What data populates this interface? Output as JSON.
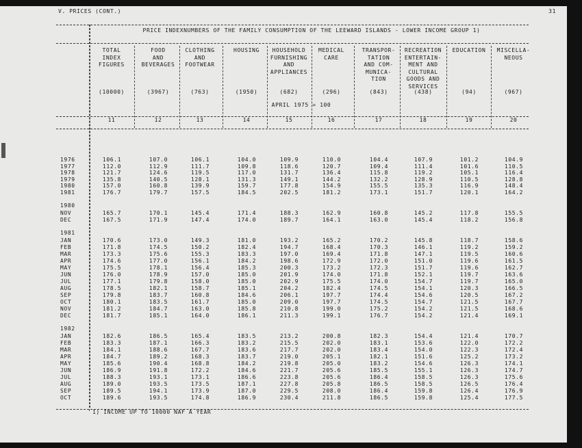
{
  "header": {
    "section": "V. PRICES (CONT.)",
    "page": "31"
  },
  "table": {
    "title": "PRICE INDEXNUMBERS OF THE FAMILY CONSUMPTION OF THE LEEWARD ISLANDS - LOWER INCOME GROUP 1)",
    "base": "APRIL 1975 = 100",
    "columns": [
      {
        "number": 11,
        "label": [
          "TOTAL",
          "INDEX",
          "FIGURES"
        ],
        "weight": "(10000)"
      },
      {
        "number": 12,
        "label": [
          "FOOD",
          "AND",
          "BEVERAGES"
        ],
        "weight": "(3967)"
      },
      {
        "number": 13,
        "label": [
          "CLOTHING",
          "AND",
          "FOOTWEAR"
        ],
        "weight": "(763)"
      },
      {
        "number": 14,
        "label": [
          "HOUSING"
        ],
        "weight": "(1950)"
      },
      {
        "number": 15,
        "label": [
          "HOUSEHOLD",
          "FURNISHING",
          "AND",
          "APPLIANCES"
        ],
        "weight": "(682)"
      },
      {
        "number": 16,
        "label": [
          "MEDICAL",
          "CARE"
        ],
        "weight": "(296)"
      },
      {
        "number": 17,
        "label": [
          "TRANSPOR-",
          "TATION",
          "AND COM-",
          "MUNICA-",
          "TION"
        ],
        "weight": "(843)"
      },
      {
        "number": 18,
        "label": [
          "RECREATION",
          "ENTERTAIN-",
          "MENT AND",
          "CULTURAL",
          "GOODS AND",
          "SERVICES"
        ],
        "weight": "(438)"
      },
      {
        "number": 19,
        "label": [
          "EDUCATION"
        ],
        "weight": "(94)"
      },
      {
        "number": 20,
        "label": [
          "MISCELLA-",
          "NEOUS"
        ],
        "weight": "(967)"
      }
    ],
    "groups": [
      {
        "rows": [
          {
            "label": "1976",
            "values": [
              "106.1",
              "107.0",
              "106.1",
              "104.0",
              "109.9",
              "110.0",
              "104.4",
              "107.9",
              "101.2",
              "104.9"
            ]
          },
          {
            "label": "1977",
            "values": [
              "112.0",
              "112.9",
              "111.7",
              "109.8",
              "118.6",
              "120.7",
              "109.4",
              "111.4",
              "101.6",
              "110.5"
            ]
          },
          {
            "label": "1978",
            "values": [
              "121.7",
              "124.6",
              "119.5",
              "117.0",
              "131.7",
              "136.4",
              "115.8",
              "119.2",
              "105.1",
              "116.4"
            ]
          },
          {
            "label": "1979",
            "values": [
              "135.8",
              "140.5",
              "128.1",
              "131.3",
              "149.1",
              "144.2",
              "132.2",
              "128.9",
              "110.5",
              "128.8"
            ]
          },
          {
            "label": "1980",
            "values": [
              "157.0",
              "160.8",
              "139.9",
              "159.7",
              "177.8",
              "154.9",
              "155.5",
              "135.3",
              "116.9",
              "148.4"
            ]
          },
          {
            "label": "1981",
            "values": [
              "176.7",
              "179.7",
              "157.5",
              "184.5",
              "202.5",
              "181.2",
              "173.1",
              "151.7",
              "120.1",
              "164.2"
            ]
          }
        ]
      },
      {
        "label": "1980",
        "rows": [
          {
            "label": "NOV",
            "values": [
              "165.7",
              "170.1",
              "145.4",
              "171.4",
              "188.3",
              "162.9",
              "160.8",
              "145.2",
              "117.8",
              "155.5"
            ]
          },
          {
            "label": "DEC",
            "values": [
              "167.5",
              "171.9",
              "147.4",
              "174.0",
              "189.7",
              "164.1",
              "163.0",
              "145.4",
              "118.2",
              "156.8"
            ]
          }
        ]
      },
      {
        "label": "1981",
        "rows": [
          {
            "label": "JAN",
            "values": [
              "170.6",
              "173.0",
              "149.3",
              "181.0",
              "193.2",
              "165.2",
              "170.2",
              "145.8",
              "118.7",
              "158.6"
            ]
          },
          {
            "label": "FEB",
            "values": [
              "171.8",
              "174.5",
              "150.2",
              "182.4",
              "194.7",
              "168.4",
              "170.3",
              "146.1",
              "119.2",
              "159.2"
            ]
          },
          {
            "label": "MAR",
            "values": [
              "173.3",
              "175.6",
              "155.3",
              "183.3",
              "197.0",
              "169.4",
              "171.8",
              "147.1",
              "119.5",
              "160.6"
            ]
          },
          {
            "label": "APR",
            "values": [
              "174.6",
              "177.0",
              "156.1",
              "184.2",
              "198.6",
              "172.9",
              "172.0",
              "151.0",
              "119.6",
              "161.5"
            ]
          },
          {
            "label": "MAY",
            "values": [
              "175.5",
              "178.1",
              "156.4",
              "185.3",
              "200.3",
              "173.2",
              "172.3",
              "151.7",
              "119.6",
              "162.7"
            ]
          },
          {
            "label": "JUN",
            "values": [
              "176.0",
              "178.9",
              "157.0",
              "185.0",
              "201.9",
              "174.0",
              "171.8",
              "152.1",
              "119.7",
              "163.6"
            ]
          },
          {
            "label": "JUL",
            "values": [
              "177.1",
              "179.8",
              "158.0",
              "185.0",
              "202.9",
              "175.5",
              "174.0",
              "154.7",
              "119.7",
              "165.0"
            ]
          },
          {
            "label": "AUG",
            "values": [
              "178.5",
              "182.1",
              "158.7",
              "185.1",
              "204.2",
              "182.4",
              "174.5",
              "154.1",
              "120.3",
              "166.5"
            ]
          },
          {
            "label": "SEP",
            "values": [
              "179.8",
              "183.7",
              "160.8",
              "184.6",
              "206.1",
              "197.7",
              "174.4",
              "154.6",
              "120.5",
              "167.2"
            ]
          },
          {
            "label": "OCT",
            "values": [
              "180.1",
              "183.5",
              "161.7",
              "185.0",
              "209.0",
              "197.7",
              "174.5",
              "154.7",
              "121.5",
              "167.7"
            ]
          },
          {
            "label": "NOV",
            "values": [
              "181.2",
              "184.7",
              "163.0",
              "185.8",
              "210.8",
              "199.0",
              "175.2",
              "154.2",
              "121.5",
              "168.6"
            ]
          },
          {
            "label": "DEC",
            "values": [
              "181.7",
              "185.1",
              "164.0",
              "186.1",
              "211.3",
              "199.1",
              "176.7",
              "154.2",
              "121.4",
              "169.1"
            ]
          }
        ]
      },
      {
        "label": "1982",
        "rows": [
          {
            "label": "JAN",
            "values": [
              "182.6",
              "186.5",
              "165.4",
              "183.5",
              "213.2",
              "200.8",
              "182.3",
              "154.4",
              "121.4",
              "170.7"
            ]
          },
          {
            "label": "FEB",
            "values": [
              "183.3",
              "187.1",
              "166.3",
              "183.2",
              "215.5",
              "202.0",
              "183.1",
              "153.6",
              "122.0",
              "172.2"
            ]
          },
          {
            "label": "MAR",
            "values": [
              "184.1",
              "188.6",
              "167.7",
              "183.6",
              "217.7",
              "202.0",
              "183.4",
              "154.0",
              "122.3",
              "172.4"
            ]
          },
          {
            "label": "APR",
            "values": [
              "184.7",
              "189.2",
              "168.3",
              "183.7",
              "219.0",
              "205.1",
              "182.1",
              "151.6",
              "125.2",
              "173.2"
            ]
          },
          {
            "label": "MAY",
            "values": [
              "185.6",
              "190.4",
              "168.8",
              "184.2",
              "219.8",
              "205.0",
              "183.2",
              "154.6",
              "126.3",
              "174.1"
            ]
          },
          {
            "label": "JUN",
            "values": [
              "186.9",
              "191.8",
              "172.2",
              "184.6",
              "221.7",
              "205.6",
              "185.5",
              "155.1",
              "126.3",
              "174.7"
            ]
          },
          {
            "label": "JUL",
            "values": [
              "188.3",
              "193.1",
              "173.1",
              "186.6",
              "223.8",
              "205.6",
              "186.4",
              "158.5",
              "126.3",
              "175.6"
            ]
          },
          {
            "label": "AUG",
            "values": [
              "189.0",
              "193.5",
              "173.5",
              "187.1",
              "227.8",
              "205.8",
              "186.5",
              "158.5",
              "126.5",
              "176.4"
            ]
          },
          {
            "label": "SEP",
            "values": [
              "189.5",
              "194.1",
              "173.9",
              "187.0",
              "229.5",
              "208.0",
              "186.4",
              "159.8",
              "126.4",
              "176.9"
            ]
          },
          {
            "label": "OCT",
            "values": [
              "189.6",
              "193.5",
              "174.8",
              "186.9",
              "230.4",
              "211.8",
              "186.5",
              "159.8",
              "125.4",
              "177.5"
            ]
          }
        ]
      }
    ]
  },
  "footnote": "1) INCOME UP TO 10000 NAF A YEAR"
}
